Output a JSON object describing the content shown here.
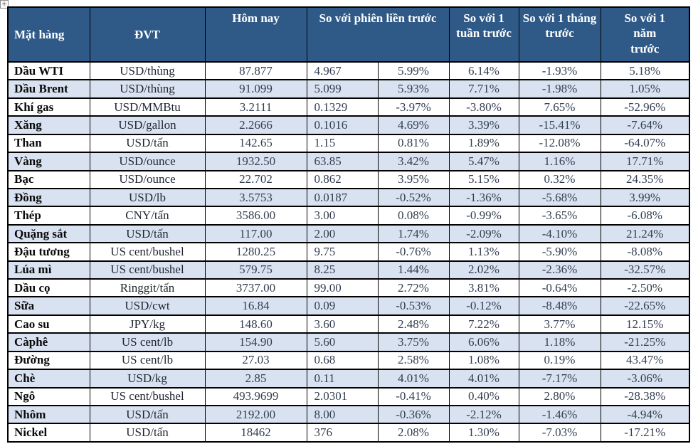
{
  "handle": {
    "glyph": "+"
  },
  "table": {
    "colors": {
      "header_bg": "#2F5A88",
      "stripe_bg": "#D9E2F0",
      "border": "#000000",
      "header_text": "#FFFFFF",
      "number_text": "#333F4F"
    },
    "header": {
      "commodity": "Mặt hàng",
      "unit": "ĐVT",
      "today": "Hôm nay",
      "vs_prev_session": "So với phiên liền trước",
      "vs_week": "So với 1 tuần trước",
      "vs_month": "So với 1 tháng trước",
      "vs_year": "So với 1\nnăm\ntrước"
    },
    "rows": [
      {
        "name": "Dầu WTI",
        "unit": "USD/thùng",
        "today": "87.877",
        "change": "4.967",
        "change_pct": "5.99%",
        "week": "6.14%",
        "month": "-1.93%",
        "year": "5.18%"
      },
      {
        "name": "Dầu Brent",
        "unit": "USD/thùng",
        "today": "91.099",
        "change": "5.099",
        "change_pct": "5.93%",
        "week": "7.71%",
        "month": "-1.98%",
        "year": "1.05%"
      },
      {
        "name": "Khí gas",
        "unit": "USD/MMBtu",
        "today": "3.2111",
        "change": "0.1329",
        "change_pct": "-3.97%",
        "week": "-3.80%",
        "month": "7.65%",
        "year": "-52.96%"
      },
      {
        "name": "Xăng",
        "unit": "USD/gallon",
        "today": "2.2666",
        "change": "0.1016",
        "change_pct": "4.69%",
        "week": "3.39%",
        "month": "-15.41%",
        "year": "-7.64%"
      },
      {
        "name": "Than",
        "unit": "USD/tấn",
        "today": "142.65",
        "change": "1.15",
        "change_pct": "0.81%",
        "week": "1.89%",
        "month": "-12.08%",
        "year": "-64.07%"
      },
      {
        "name": "Vàng",
        "unit": "USD/ounce",
        "today": "1932.50",
        "change": "63.85",
        "change_pct": "3.42%",
        "week": "5.47%",
        "month": "1.16%",
        "year": "17.71%"
      },
      {
        "name": "Bạc",
        "unit": "USD/ounce",
        "today": "22.702",
        "change": "0.862",
        "change_pct": "3.95%",
        "week": "5.15%",
        "month": "0.32%",
        "year": "24.35%"
      },
      {
        "name": "Đồng",
        "unit": "USD/lb",
        "today": "3.5753",
        "change": "0.0187",
        "change_pct": "-0.52%",
        "week": "-1.36%",
        "month": "-5.68%",
        "year": "3.99%"
      },
      {
        "name": "Thép",
        "unit": "CNY/tấn",
        "today": "3586.00",
        "change": "3.00",
        "change_pct": "0.08%",
        "week": "-0.99%",
        "month": "-3.65%",
        "year": "-6.08%"
      },
      {
        "name": "Quặng sắt",
        "unit": "USD/tấn",
        "today": "117.00",
        "change": "2.00",
        "change_pct": "1.74%",
        "week": "-2.09%",
        "month": "-4.10%",
        "year": "21.24%"
      },
      {
        "name": "Đậu tương",
        "unit": "US cent/bushel",
        "today": "1280.25",
        "change": "9.75",
        "change_pct": "-0.76%",
        "week": "1.13%",
        "month": "-5.90%",
        "year": "-8.08%"
      },
      {
        "name": "Lúa mì",
        "unit": "US cent/bushel",
        "today": "579.75",
        "change": "8.25",
        "change_pct": "1.44%",
        "week": "2.02%",
        "month": "-2.36%",
        "year": "-32.57%"
      },
      {
        "name": "Dầu cọ",
        "unit": "Ringgit/tấn",
        "today": "3737.00",
        "change": "99.00",
        "change_pct": "2.72%",
        "week": "3.81%",
        "month": "-0.64%",
        "year": "-2.50%"
      },
      {
        "name": "Sữa",
        "unit": "USD/cwt",
        "today": "16.84",
        "change": "0.09",
        "change_pct": "-0.53%",
        "week": "-0.12%",
        "month": "-8.48%",
        "year": "-22.65%"
      },
      {
        "name": "Cao su",
        "unit": "JPY/kg",
        "today": "148.60",
        "change": "3.60",
        "change_pct": "2.48%",
        "week": "7.22%",
        "month": "3.77%",
        "year": "12.15%"
      },
      {
        "name": "Càphê",
        "unit": "US cent/lb",
        "today": "154.90",
        "change": "5.60",
        "change_pct": "3.75%",
        "week": "6.06%",
        "month": "1.18%",
        "year": "-21.25%"
      },
      {
        "name": "Đường",
        "unit": "US cent/lb",
        "today": "27.03",
        "change": "0.68",
        "change_pct": "2.58%",
        "week": "1.08%",
        "month": "0.19%",
        "year": "43.47%"
      },
      {
        "name": "Chè",
        "unit": "USD/kg",
        "today": "2.85",
        "change": "0.11",
        "change_pct": "4.01%",
        "week": "4.01%",
        "month": "-7.17%",
        "year": "-3.06%"
      },
      {
        "name": "Ngô",
        "unit": "US cent/bushel",
        "today": "493.9699",
        "change": "2.0301",
        "change_pct": "-0.41%",
        "week": "0.40%",
        "month": "2.80%",
        "year": "-28.38%"
      },
      {
        "name": "Nhôm",
        "unit": "USD/tấn",
        "today": "2192.00",
        "change": "8.00",
        "change_pct": "-0.36%",
        "week": "-2.12%",
        "month": "-1.46%",
        "year": "-4.94%"
      },
      {
        "name": "Nickel",
        "unit": "USD/tấn",
        "today": "18462",
        "change": "376",
        "change_pct": "2.08%",
        "week": "1.30%",
        "month": "-7.03%",
        "year": "-17.21%"
      }
    ]
  }
}
